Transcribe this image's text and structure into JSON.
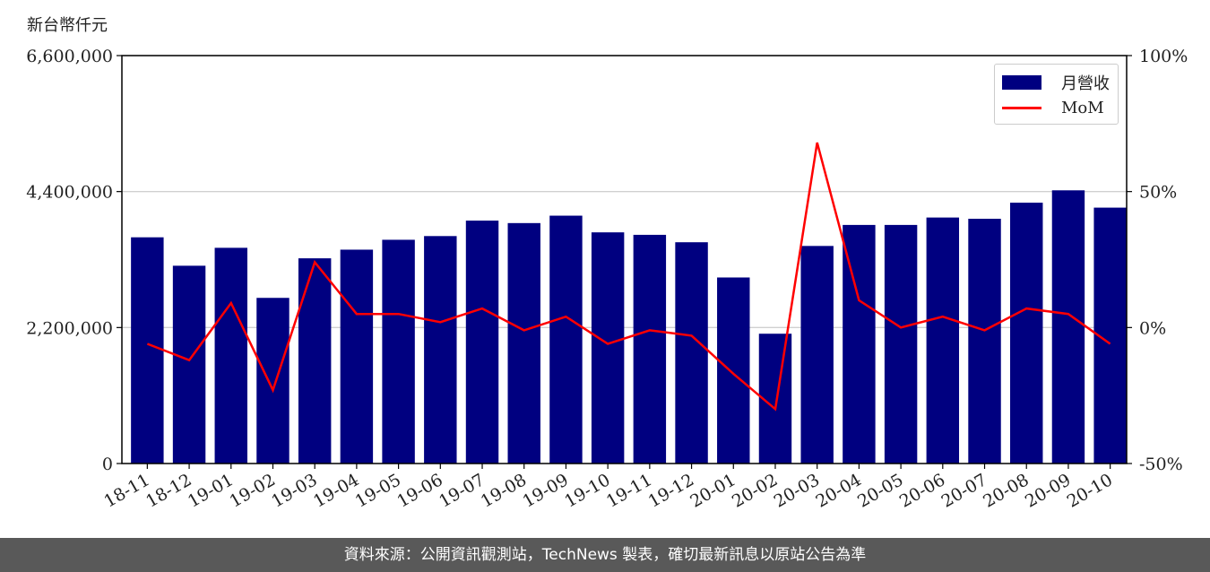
{
  "unit_label": "新台幣仟元",
  "footer": "資料來源：公開資訊觀測站，TechNews 製表，確切最新訊息以原站公告為準",
  "colors": {
    "bar": "#000080",
    "line": "#ff0000",
    "grid": "#d0d0d0",
    "footer_bg": "#595959"
  },
  "chart_data": {
    "type": "bar",
    "categories": [
      "18-11",
      "18-12",
      "19-01",
      "19-02",
      "19-03",
      "19-04",
      "19-05",
      "19-06",
      "19-07",
      "19-08",
      "19-09",
      "19-10",
      "19-11",
      "19-12",
      "20-01",
      "20-02",
      "20-03",
      "20-04",
      "20-05",
      "20-06",
      "20-07",
      "20-08",
      "20-09",
      "20-10"
    ],
    "series": [
      {
        "name": "月營收",
        "axis": "left",
        "type": "bar",
        "values": [
          3660000,
          3200000,
          3490000,
          2680000,
          3320000,
          3460000,
          3620000,
          3680000,
          3930000,
          3890000,
          4010000,
          3740000,
          3700000,
          3580000,
          3010000,
          2100000,
          3520000,
          3860000,
          3860000,
          3980000,
          3960000,
          4220000,
          4420000,
          4140000
        ]
      },
      {
        "name": "MoM",
        "axis": "right",
        "type": "line",
        "unit": "%",
        "values": [
          -6,
          -12,
          9,
          -23,
          24,
          5,
          5,
          2,
          7,
          -1,
          4,
          -6,
          -1,
          -3,
          -17,
          -30,
          68,
          10,
          0,
          4,
          -1,
          7,
          5,
          -6
        ]
      }
    ],
    "ylim_left": [
      0,
      6600000
    ],
    "yticks_left": [
      "0",
      "2,200,000",
      "4,400,000",
      "6,600,000"
    ],
    "ylim_right": [
      -50,
      100
    ],
    "yticks_right": [
      "-50%",
      "0%",
      "50%",
      "100%"
    ],
    "grid": true,
    "legend": "top-right"
  }
}
